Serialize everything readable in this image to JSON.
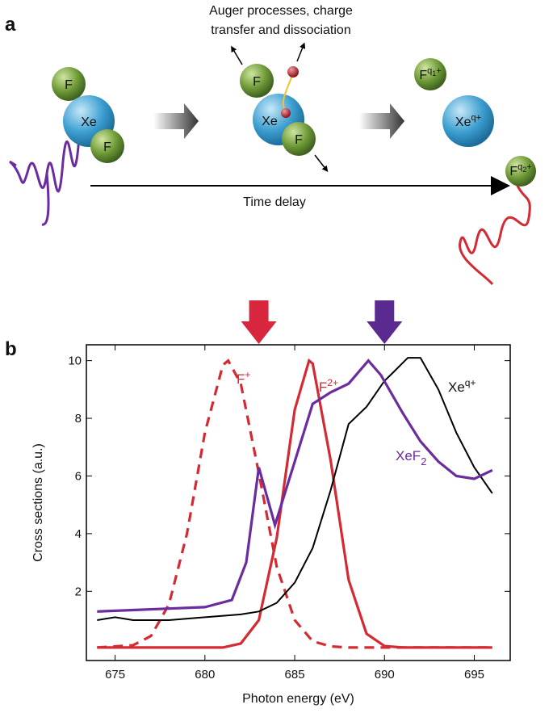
{
  "panels": {
    "a": "a",
    "b": "b"
  },
  "diagram": {
    "caption_lines": [
      "Auger processes, charge",
      "transfer and dissociation"
    ],
    "molecule1": [
      "F",
      "Xe",
      "F"
    ],
    "molecule2": [
      "F",
      "Xe",
      "F"
    ],
    "fragments": [
      {
        "base": "F",
        "sup": "q",
        "supsub": "1",
        "supend": "+"
      },
      {
        "base": "Xe",
        "sup": "q",
        "supsub": "",
        "supend": "+"
      },
      {
        "base": "F",
        "sup": "q",
        "supsub": "2",
        "supend": "+"
      }
    ],
    "axis_label": "Time delay"
  },
  "chart_data": {
    "type": "line",
    "xlabel": "Photon energy (eV)",
    "ylabel": "Cross sections (a.u.)",
    "xlim": [
      673.4,
      697
    ],
    "ylim": [
      -0.4,
      10.55
    ],
    "xticks": [
      675,
      680,
      685,
      690,
      695
    ],
    "yticks": [
      2,
      4,
      6,
      8,
      10
    ],
    "markers": [
      {
        "x": 683,
        "color": "#d7263d"
      },
      {
        "x": 690,
        "color": "#5b2a91"
      }
    ],
    "series": [
      {
        "name": "F",
        "sup": "+",
        "sub": "",
        "color": "#d42a33",
        "dash": true,
        "x": [
          674,
          676,
          677,
          678,
          679,
          680,
          681,
          681.3,
          682,
          683,
          684,
          685,
          686,
          687,
          688,
          696
        ],
        "values": [
          0.05,
          0.13,
          0.45,
          1.55,
          4.0,
          7.5,
          9.85,
          10,
          9.2,
          6.1,
          2.85,
          1.0,
          0.27,
          0.09,
          0.05,
          0.05
        ]
      },
      {
        "name": "F",
        "sup": "2+",
        "sub": "",
        "color": "#d42a33",
        "dash": false,
        "x": [
          674,
          680,
          681,
          682,
          683,
          684,
          685,
          685.8,
          686,
          687,
          688,
          689,
          690,
          691,
          696
        ],
        "values": [
          0.05,
          0.05,
          0.05,
          0.19,
          1.0,
          3.85,
          8.3,
          10,
          9.9,
          6.55,
          2.4,
          0.53,
          0.1,
          0.05,
          0.05
        ]
      },
      {
        "name": "Xe",
        "sup": "q+",
        "sub": "",
        "color": "#000000",
        "dash": false,
        "x": [
          674,
          675,
          676,
          678,
          680,
          682,
          683,
          684,
          685,
          686,
          687,
          688,
          689,
          690,
          690.5,
          691.3,
          692,
          693,
          694,
          695,
          696
        ],
        "values": [
          1.0,
          1.1,
          1.0,
          1.0,
          1.1,
          1.2,
          1.3,
          1.6,
          2.3,
          3.5,
          5.5,
          7.8,
          8.4,
          9.3,
          9.6,
          10.1,
          10.1,
          9.0,
          7.5,
          6.3,
          5.4
        ]
      },
      {
        "name": "XeF",
        "sup": "",
        "sub": "2",
        "color": "#6a2c9e",
        "dash": false,
        "x": [
          674,
          676,
          678,
          680,
          681.5,
          682.3,
          683,
          683.9,
          685,
          686,
          687,
          688,
          689.1,
          689.8,
          691,
          692,
          693,
          694,
          695,
          696
        ],
        "values": [
          1.3,
          1.35,
          1.4,
          1.45,
          1.7,
          3.0,
          6.3,
          4.3,
          6.5,
          8.5,
          8.9,
          9.2,
          10,
          9.5,
          8.2,
          7.2,
          6.5,
          6.0,
          5.9,
          6.2
        ]
      }
    ]
  }
}
